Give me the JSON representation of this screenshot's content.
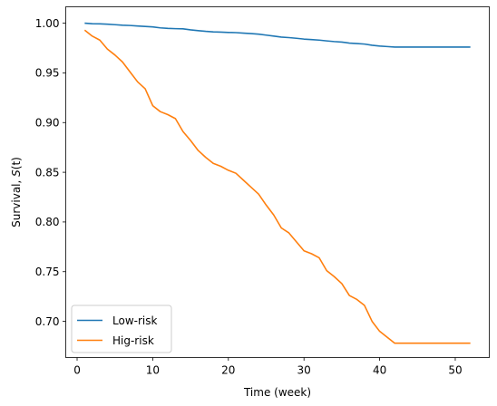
{
  "chart_data": {
    "type": "line",
    "xlabel": "Time (week)",
    "ylabel_prefix": "Survival, ",
    "ylabel_var": "S",
    "ylabel_suffix": "(t)",
    "xlim": [
      -1.5,
      54.5
    ],
    "ylim": [
      0.6636,
      1.0165
    ],
    "xticks": [
      0,
      10,
      20,
      30,
      40,
      50
    ],
    "xtick_labels": [
      "0",
      "10",
      "20",
      "30",
      "40",
      "50"
    ],
    "yticks": [
      0.7,
      0.75,
      0.8,
      0.85,
      0.9,
      0.95,
      1.0
    ],
    "ytick_labels": [
      "0.70",
      "0.75",
      "0.80",
      "0.85",
      "0.90",
      "0.95",
      "1.00"
    ],
    "grid": false,
    "legend_position": "lower-left",
    "series": [
      {
        "name": "Low-risk",
        "color": "#1f77b4",
        "x": [
          1,
          2,
          3,
          4,
          5,
          6,
          7,
          8,
          9,
          10,
          11,
          12,
          13,
          14,
          15,
          16,
          17,
          18,
          19,
          20,
          21,
          22,
          23,
          24,
          25,
          26,
          27,
          28,
          29,
          30,
          31,
          32,
          33,
          34,
          35,
          36,
          37,
          38,
          39,
          40,
          41,
          42,
          43,
          44,
          45,
          46,
          47,
          48,
          49,
          50,
          51,
          52
        ],
        "values": [
          1.0,
          0.9995,
          0.9993,
          0.999,
          0.9985,
          0.998,
          0.9977,
          0.9972,
          0.9967,
          0.9963,
          0.9953,
          0.9948,
          0.9945,
          0.9943,
          0.9933,
          0.9925,
          0.9918,
          0.9913,
          0.991,
          0.9907,
          0.9905,
          0.99,
          0.9895,
          0.989,
          0.988,
          0.987,
          0.986,
          0.9855,
          0.9848,
          0.984,
          0.9835,
          0.983,
          0.9822,
          0.9815,
          0.981,
          0.98,
          0.9795,
          0.979,
          0.9778,
          0.977,
          0.9765,
          0.976,
          0.976,
          0.976,
          0.976,
          0.976,
          0.976,
          0.976,
          0.976,
          0.976,
          0.976,
          0.976
        ]
      },
      {
        "name": "Hig-risk",
        "color": "#ff7f0e",
        "x": [
          1,
          2,
          3,
          4,
          5,
          6,
          7,
          8,
          9,
          10,
          11,
          12,
          13,
          14,
          15,
          16,
          17,
          18,
          19,
          20,
          21,
          22,
          23,
          24,
          25,
          26,
          27,
          28,
          29,
          30,
          31,
          32,
          33,
          34,
          35,
          36,
          37,
          38,
          39,
          40,
          41,
          42,
          43,
          44,
          45,
          46,
          47,
          48,
          49,
          50,
          51,
          52
        ],
        "values": [
          0.993,
          0.987,
          0.983,
          0.974,
          0.968,
          0.961,
          0.951,
          0.941,
          0.934,
          0.917,
          0.911,
          0.908,
          0.904,
          0.891,
          0.882,
          0.872,
          0.865,
          0.859,
          0.856,
          0.852,
          0.849,
          0.842,
          0.835,
          0.828,
          0.817,
          0.807,
          0.794,
          0.789,
          0.78,
          0.771,
          0.768,
          0.764,
          0.751,
          0.745,
          0.738,
          0.726,
          0.722,
          0.716,
          0.7,
          0.69,
          0.684,
          0.678,
          0.678,
          0.678,
          0.678,
          0.678,
          0.678,
          0.678,
          0.678,
          0.678,
          0.678,
          0.678
        ]
      }
    ]
  }
}
